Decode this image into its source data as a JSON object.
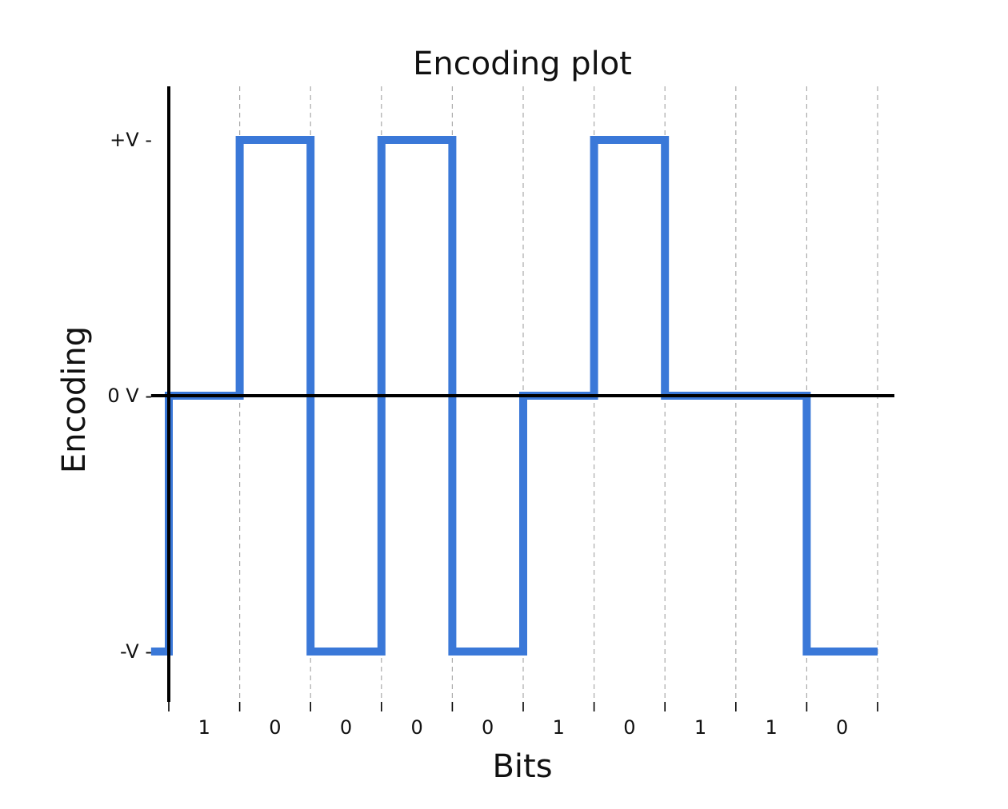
{
  "chart_data": {
    "type": "line",
    "step": "post",
    "title": "Encoding plot",
    "xlabel": "Bits",
    "ylabel": "Encoding",
    "bits": [
      "1",
      "0",
      "0",
      "0",
      "0",
      "1",
      "0",
      "1",
      "1",
      "0"
    ],
    "y_ticks": [
      {
        "value": 1,
        "label": "+V -"
      },
      {
        "value": 0,
        "label": "0 V -"
      },
      {
        "value": -1,
        "label": "-V -"
      }
    ],
    "xlim": [
      -0.25,
      10.25
    ],
    "ylim": [
      -1.2,
      1.2
    ],
    "series": [
      {
        "color": "#3a78d8",
        "x": [
          -0.25,
          0,
          1,
          2,
          3,
          4,
          5,
          6,
          7,
          8,
          9,
          10
        ],
        "y": [
          -1,
          0,
          1,
          -1,
          1,
          -1,
          0,
          1,
          0,
          0,
          -1,
          -1
        ]
      }
    ],
    "grid_x": true,
    "grid_y": false
  }
}
